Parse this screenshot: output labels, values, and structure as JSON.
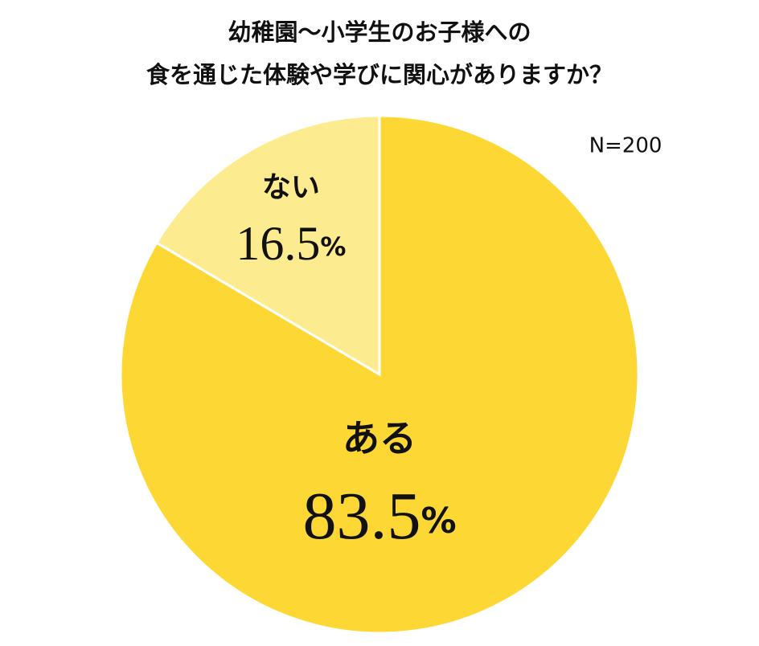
{
  "chart_data": {
    "type": "pie",
    "title": [
      "幼稚園～小学生のお子様への",
      "食を通じた体験や学びに関心がありますか？"
    ],
    "annotation": "N=200",
    "categories": [
      "ある",
      "ない"
    ],
    "values": [
      83.5,
      16.5
    ],
    "value_labels": [
      "83.5%",
      "16.5%"
    ],
    "colors": [
      "#fdd835",
      "#fdeb8f"
    ]
  }
}
